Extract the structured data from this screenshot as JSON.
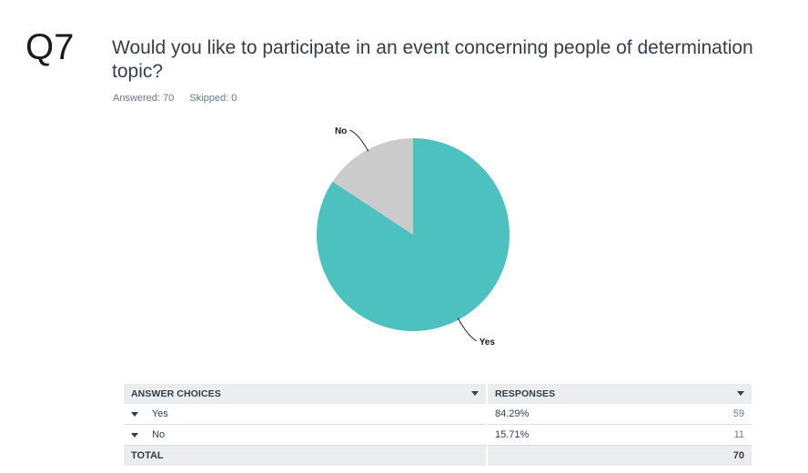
{
  "question": {
    "number": "Q7",
    "title": "Would you like to participate in an event concerning people of determination topic?",
    "answered": "Answered: 70",
    "skipped": "Skipped: 0"
  },
  "chart_data": {
    "type": "pie",
    "slices": [
      {
        "label": "Yes",
        "value": 84.29,
        "color": "#4dc0c0"
      },
      {
        "label": "No",
        "value": 15.71,
        "color": "#cbcbcb"
      }
    ]
  },
  "table": {
    "headers": {
      "choices": "ANSWER CHOICES",
      "responses": "RESPONSES"
    },
    "rows": [
      {
        "choice": "Yes",
        "percent": "84.29%",
        "count": "59"
      },
      {
        "choice": "No",
        "percent": "15.71%",
        "count": "11"
      }
    ],
    "total": {
      "label": "TOTAL",
      "count": "70"
    }
  }
}
